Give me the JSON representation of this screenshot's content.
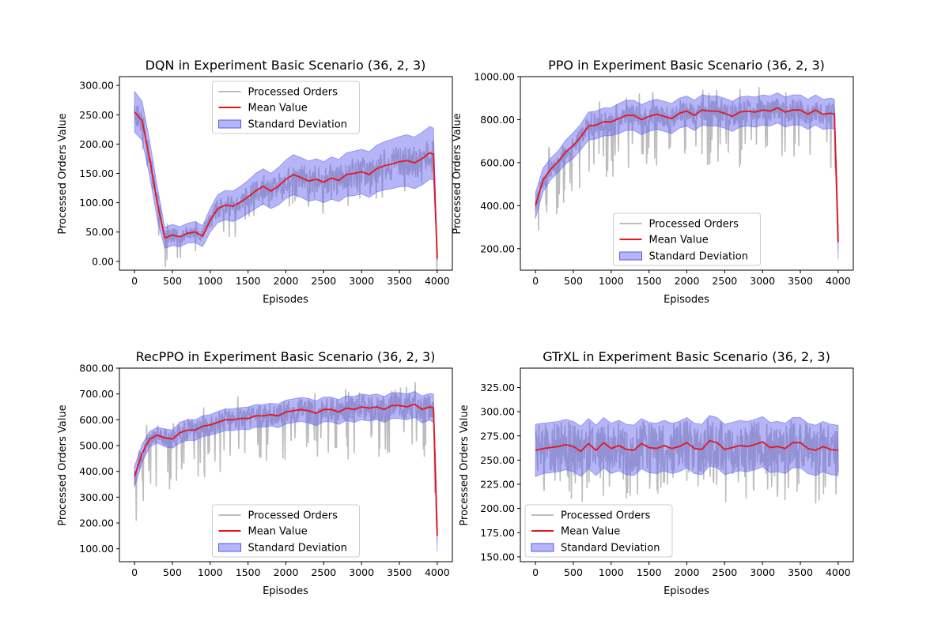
{
  "colors": {
    "raw": "#bdbdbd",
    "mean": "#e8141a",
    "band_fill": "#5b5bf0",
    "band_alpha": 0.45,
    "axis": "#000000"
  },
  "legend_labels": [
    "Processed Orders",
    "Mean Value",
    "Standard Deviation"
  ],
  "chart_data": [
    {
      "type": "line",
      "title": "DQN in Experiment Basic Scenario (36, 2, 3)",
      "xlabel": "Episodes",
      "ylabel": "Processed Orders Value",
      "xlim": [
        -200,
        4200
      ],
      "ylim": [
        -15,
        315
      ],
      "xticks": [
        0,
        500,
        1000,
        1500,
        2000,
        2500,
        3000,
        3500,
        4000
      ],
      "yticks": [
        0,
        50,
        100,
        150,
        200,
        250,
        300
      ],
      "ytick_labels": [
        "0.00",
        "50.00",
        "100.00",
        "150.00",
        "200.00",
        "250.00",
        "300.00"
      ],
      "legend": "upper center",
      "noise": 22,
      "spike": 55,
      "series": [
        {
          "name": "Mean Value",
          "x": [
            0,
            100,
            200,
            300,
            350,
            400,
            500,
            600,
            700,
            800,
            900,
            1000,
            1100,
            1200,
            1300,
            1400,
            1500,
            1600,
            1700,
            1800,
            1900,
            2000,
            2100,
            2200,
            2300,
            2400,
            2500,
            2600,
            2700,
            2800,
            2900,
            3000,
            3100,
            3200,
            3300,
            3400,
            3500,
            3600,
            3700,
            3800,
            3900,
            3950,
            4000
          ],
          "values": [
            255,
            240,
            175,
            100,
            70,
            40,
            45,
            42,
            48,
            50,
            43,
            70,
            90,
            96,
            94,
            101,
            110,
            120,
            128,
            120,
            128,
            140,
            148,
            143,
            137,
            140,
            135,
            142,
            138,
            148,
            150,
            153,
            148,
            158,
            163,
            166,
            170,
            172,
            168,
            175,
            185,
            183,
            5
          ],
          "std": [
            35,
            33,
            30,
            28,
            23,
            18,
            18,
            17,
            17,
            18,
            18,
            20,
            24,
            25,
            26,
            27,
            28,
            30,
            30,
            30,
            32,
            33,
            34,
            34,
            34,
            35,
            35,
            36,
            36,
            37,
            38,
            38,
            39,
            40,
            41,
            42,
            43,
            44,
            44,
            45,
            45,
            44,
            3
          ]
        }
      ]
    },
    {
      "type": "line",
      "title": "PPO in Experiment Basic Scenario (36, 2, 3)",
      "xlabel": "Episodes",
      "ylabel": "Processed Orders Value",
      "xlim": [
        -200,
        4200
      ],
      "ylim": [
        100,
        1000
      ],
      "xticks": [
        0,
        500,
        1000,
        1500,
        2000,
        2500,
        3000,
        3500,
        4000
      ],
      "yticks": [
        200,
        400,
        600,
        800,
        1000
      ],
      "ytick_labels": [
        "200.00",
        "400.00",
        "600.00",
        "800.00",
        "1000.00"
      ],
      "legend": "lower center",
      "noise": 50,
      "spike": 260,
      "series": [
        {
          "name": "Mean Value",
          "x": [
            0,
            100,
            200,
            300,
            400,
            500,
            600,
            700,
            800,
            900,
            1000,
            1100,
            1200,
            1300,
            1400,
            1500,
            1600,
            1700,
            1800,
            1900,
            2000,
            2100,
            2200,
            2300,
            2400,
            2500,
            2600,
            2700,
            2800,
            2900,
            3000,
            3100,
            3200,
            3300,
            3400,
            3500,
            3600,
            3700,
            3800,
            3900,
            3950,
            4000
          ],
          "values": [
            400,
            520,
            570,
            605,
            650,
            680,
            720,
            770,
            775,
            790,
            790,
            805,
            820,
            820,
            800,
            815,
            825,
            815,
            805,
            830,
            840,
            820,
            845,
            840,
            840,
            830,
            815,
            835,
            840,
            835,
            845,
            840,
            855,
            835,
            845,
            845,
            825,
            845,
            825,
            830,
            825,
            230
          ],
          "std": [
            60,
            55,
            50,
            50,
            55,
            60,
            60,
            65,
            65,
            65,
            65,
            70,
            70,
            70,
            70,
            70,
            70,
            70,
            70,
            70,
            70,
            70,
            70,
            70,
            70,
            70,
            70,
            70,
            70,
            70,
            70,
            70,
            70,
            70,
            70,
            70,
            70,
            70,
            70,
            70,
            70,
            80
          ]
        }
      ]
    },
    {
      "type": "line",
      "title": "RecPPO in Experiment Basic Scenario (36, 2, 3)",
      "xlabel": "Episodes",
      "ylabel": "Processed Orders Value",
      "xlim": [
        -200,
        4200
      ],
      "ylim": [
        50,
        800
      ],
      "xticks": [
        0,
        500,
        1000,
        1500,
        2000,
        2500,
        3000,
        3500,
        4000
      ],
      "yticks": [
        100,
        200,
        300,
        400,
        500,
        600,
        700,
        800
      ],
      "ytick_labels": [
        "100.00",
        "200.00",
        "300.00",
        "400.00",
        "500.00",
        "600.00",
        "700.00",
        "800.00"
      ],
      "legend": "lower center",
      "noise": 45,
      "spike": 200,
      "series": [
        {
          "name": "Mean Value",
          "x": [
            0,
            100,
            200,
            300,
            400,
            500,
            600,
            700,
            800,
            900,
            1000,
            1100,
            1200,
            1300,
            1400,
            1500,
            1600,
            1700,
            1800,
            1900,
            2000,
            2100,
            2200,
            2300,
            2400,
            2500,
            2600,
            2700,
            2800,
            2900,
            3000,
            3100,
            3200,
            3300,
            3400,
            3500,
            3600,
            3700,
            3800,
            3900,
            3950,
            4000
          ],
          "values": [
            380,
            470,
            525,
            540,
            530,
            525,
            550,
            560,
            560,
            575,
            580,
            590,
            600,
            600,
            605,
            605,
            615,
            615,
            620,
            615,
            630,
            635,
            640,
            635,
            625,
            640,
            640,
            630,
            645,
            640,
            650,
            645,
            650,
            640,
            655,
            655,
            650,
            660,
            640,
            650,
            645,
            150
          ],
          "std": [
            40,
            35,
            30,
            30,
            35,
            35,
            40,
            40,
            40,
            40,
            40,
            42,
            42,
            42,
            42,
            44,
            44,
            44,
            44,
            46,
            46,
            46,
            46,
            48,
            48,
            48,
            48,
            48,
            48,
            50,
            50,
            50,
            50,
            50,
            50,
            50,
            50,
            50,
            52,
            52,
            55,
            60
          ]
        }
      ]
    },
    {
      "type": "line",
      "title": "GTrXL in Experiment Basic Scenario (36, 2, 3)",
      "xlabel": "Episodes",
      "ylabel": "Processed Orders Value",
      "xlim": [
        -200,
        4200
      ],
      "ylim": [
        145,
        345
      ],
      "xticks": [
        0,
        500,
        1000,
        1500,
        2000,
        2500,
        3000,
        3500,
        4000
      ],
      "yticks": [
        150,
        175,
        200,
        225,
        250,
        275,
        300,
        325
      ],
      "ytick_labels": [
        "150.00",
        "175.00",
        "200.00",
        "225.00",
        "250.00",
        "275.00",
        "300.00",
        "325.00"
      ],
      "legend": "lower left",
      "noise": 25,
      "spike": 55,
      "series": [
        {
          "name": "Mean Value",
          "x": [
            0,
            100,
            200,
            300,
            400,
            500,
            600,
            700,
            800,
            900,
            1000,
            1100,
            1200,
            1300,
            1400,
            1500,
            1600,
            1700,
            1800,
            1900,
            2000,
            2100,
            2200,
            2300,
            2400,
            2500,
            2600,
            2700,
            2800,
            2900,
            3000,
            3100,
            3200,
            3300,
            3400,
            3500,
            3600,
            3700,
            3800,
            3900,
            4000
          ],
          "values": [
            260,
            262,
            263,
            264,
            266,
            264,
            259,
            267,
            260,
            268,
            262,
            265,
            261,
            260,
            267,
            263,
            262,
            265,
            262,
            264,
            268,
            262,
            261,
            270,
            268,
            261,
            263,
            265,
            264,
            266,
            269,
            263,
            264,
            262,
            268,
            268,
            262,
            260,
            264,
            261,
            260
          ],
          "std": [
            27,
            26,
            26,
            26,
            26,
            26,
            26,
            26,
            26,
            26,
            26,
            26,
            26,
            26,
            26,
            26,
            26,
            26,
            26,
            26,
            26,
            26,
            26,
            26,
            26,
            26,
            26,
            26,
            26,
            26,
            26,
            26,
            26,
            26,
            26,
            26,
            26,
            26,
            26,
            26,
            26
          ]
        }
      ]
    }
  ]
}
